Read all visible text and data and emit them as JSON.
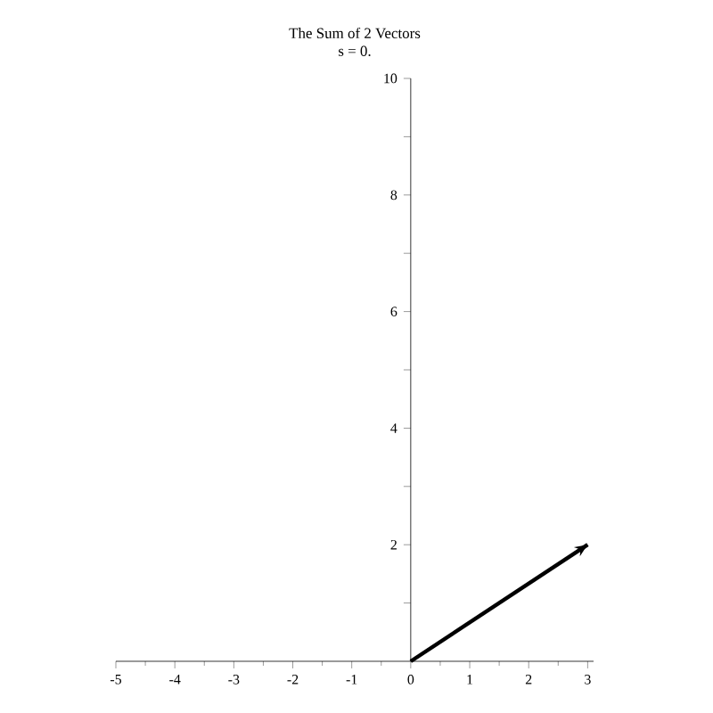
{
  "chart_data": {
    "type": "line",
    "title": "The Sum of 2 Vectors",
    "subtitle": "s = 0.",
    "x": [
      0,
      3
    ],
    "series": [
      {
        "color": "#000000",
        "values": [
          0,
          2
        ]
      }
    ],
    "xlim": [
      -5,
      3.1
    ],
    "ylim": [
      0,
      10
    ],
    "xticks": [
      -5,
      -4,
      -3,
      -2,
      -1,
      0,
      1,
      2,
      3
    ],
    "yticks": [
      {
        "value": 1,
        "label": null
      },
      2,
      {
        "value": 3,
        "label": null
      },
      4,
      {
        "value": 5,
        "label": null
      },
      6,
      {
        "value": 7,
        "label": null
      },
      8,
      {
        "value": 9,
        "label": null
      },
      10
    ],
    "grid": false,
    "marker": "none",
    "line_style": "solid"
  }
}
